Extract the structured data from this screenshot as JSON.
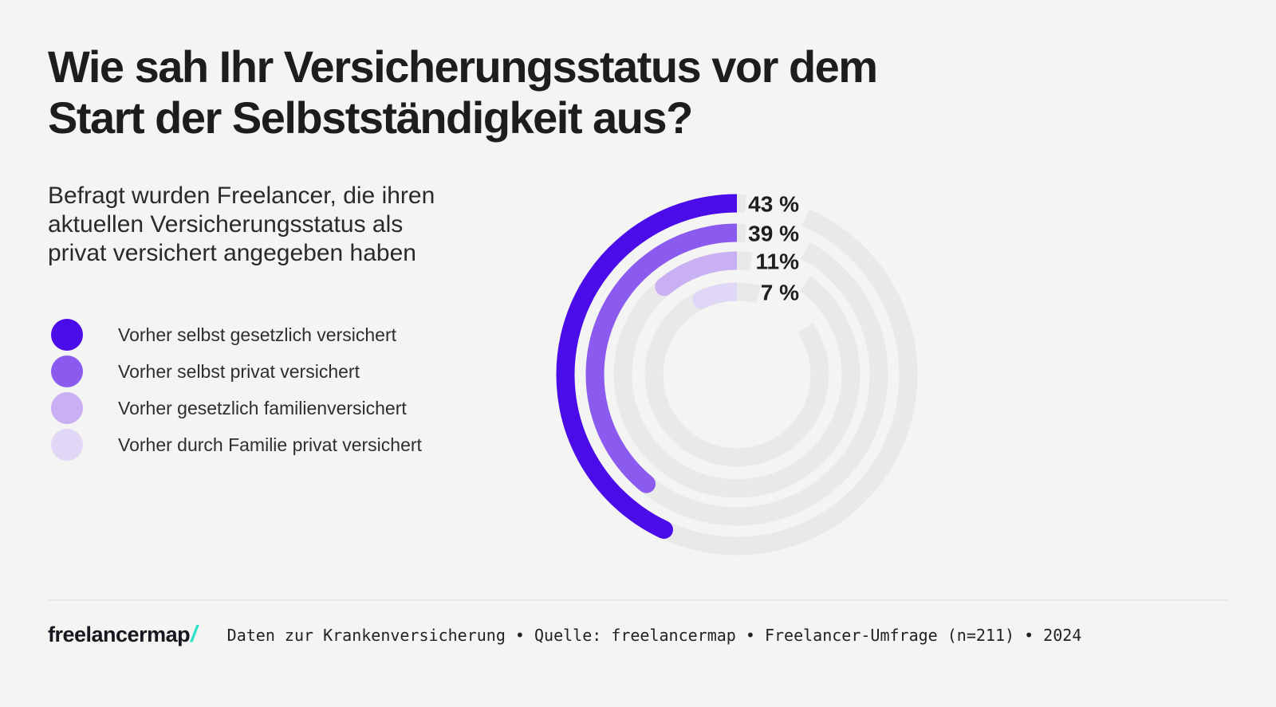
{
  "title": {
    "lines": [
      "Wie sah Ihr Versicherungsstatus vor dem",
      "Start der Selbstständigkeit aus?"
    ]
  },
  "subtitle": {
    "full_text": "Befragt wurden Freelancer, die ihren aktuellen Versicherungsstatus als privat versichert angegeben haben",
    "lines": [
      "Befragt wurden Freelancer, die ihren",
      "aktuellen Versicherungsstatus als",
      "privat versichert angegeben haben"
    ]
  },
  "legend": {
    "items": [
      {
        "label": "Vorher selbst gesetzlich versichert",
        "color": "#4a0ce8"
      },
      {
        "label": "Vorher selbst privat versichert",
        "color": "#8b5bef"
      },
      {
        "label": "Vorher gesetzlich familienversichert",
        "color": "#c9b0f3"
      },
      {
        "label": "Vorher durch Familie privat versichert",
        "color": "#e0d7f7"
      }
    ]
  },
  "chart_data": {
    "type": "bar",
    "subtype": "radial-progress-rings",
    "categories": [
      "Vorher selbst gesetzlich versichert",
      "Vorher selbst privat versichert",
      "Vorher gesetzlich familienversichert",
      "Vorher durch Familie privat versichert"
    ],
    "values": [
      43,
      39,
      11,
      7
    ],
    "unit": "%",
    "value_labels": [
      "43 %",
      "39 %",
      "11%",
      "7 %"
    ],
    "colors": [
      "#4a0ce8",
      "#8b5bef",
      "#c9b0f3",
      "#e0d7f7"
    ],
    "track_color": "#e9e9e9",
    "start_angle": "top",
    "direction": "counter-clockwise",
    "value_range": [
      0,
      100
    ],
    "legend_position": "left",
    "title": "Wie sah Ihr Versicherungsstatus vor dem Start der Selbstständigkeit aus?"
  },
  "footer": {
    "logo_text": "freelancermap",
    "logo_slash": "/",
    "logo_slash_color": "#2be3c9",
    "text": "Daten zur Krankenversicherung • Quelle: freelancermap • Freelancer-Umfrage (n=211) • 2024"
  },
  "colors": {
    "background": "#f4f4f3",
    "title_text": "#1d1d1f",
    "body_text": "#2a2a2c",
    "divider": "#e7e7e6",
    "accent_teal": "#2be3c9"
  }
}
